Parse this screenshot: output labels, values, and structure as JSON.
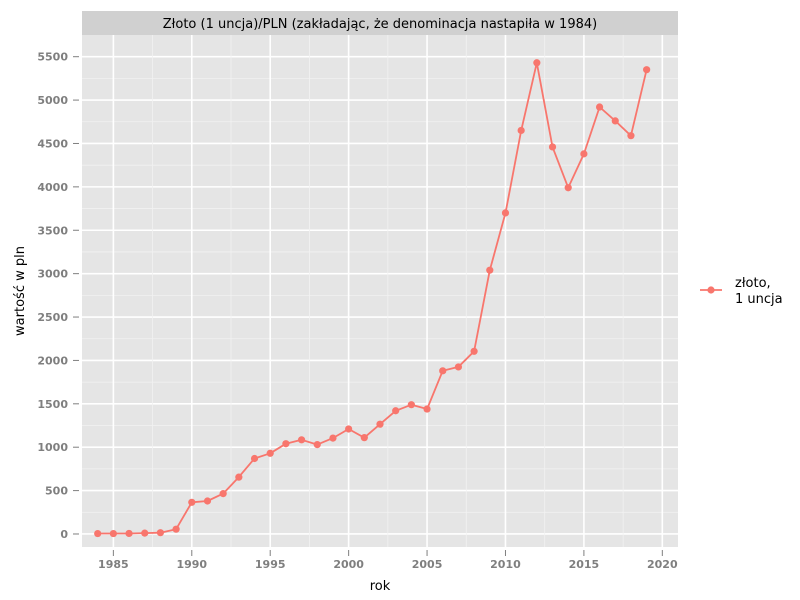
{
  "chart_data": {
    "type": "line",
    "title": "Złoto (1 uncja)/PLN (zakładając, że denominacja nastapiła w 1984)",
    "xlabel": "rok",
    "ylabel": "wartość w pln",
    "xlim": [
      1983,
      2021
    ],
    "ylim": [
      -150,
      5750
    ],
    "x_ticks": [
      1985,
      1990,
      1995,
      2000,
      2005,
      2010,
      2015,
      2020
    ],
    "y_ticks": [
      0,
      500,
      1000,
      1500,
      2000,
      2500,
      3000,
      3500,
      4000,
      4500,
      5000,
      5500
    ],
    "grid": true,
    "legend_position": "right",
    "series": [
      {
        "name": "złoto,\n1 uncja",
        "color": "#F8766D",
        "x": [
          1984,
          1985,
          1986,
          1987,
          1988,
          1989,
          1990,
          1991,
          1992,
          1993,
          1994,
          1995,
          1996,
          1997,
          1998,
          1999,
          2000,
          2001,
          2002,
          2003,
          2004,
          2005,
          2006,
          2007,
          2008,
          2009,
          2010,
          2011,
          2012,
          2013,
          2014,
          2015,
          2016,
          2017,
          2018,
          2019
        ],
        "y": [
          5,
          5,
          6,
          10,
          15,
          55,
          365,
          380,
          465,
          655,
          870,
          930,
          1040,
          1085,
          1030,
          1105,
          1210,
          1110,
          1265,
          1420,
          1490,
          1440,
          1880,
          1925,
          2105,
          3040,
          3700,
          4650,
          5430,
          4460,
          3990,
          4380,
          4920,
          4760,
          4590,
          5350
        ]
      }
    ]
  }
}
